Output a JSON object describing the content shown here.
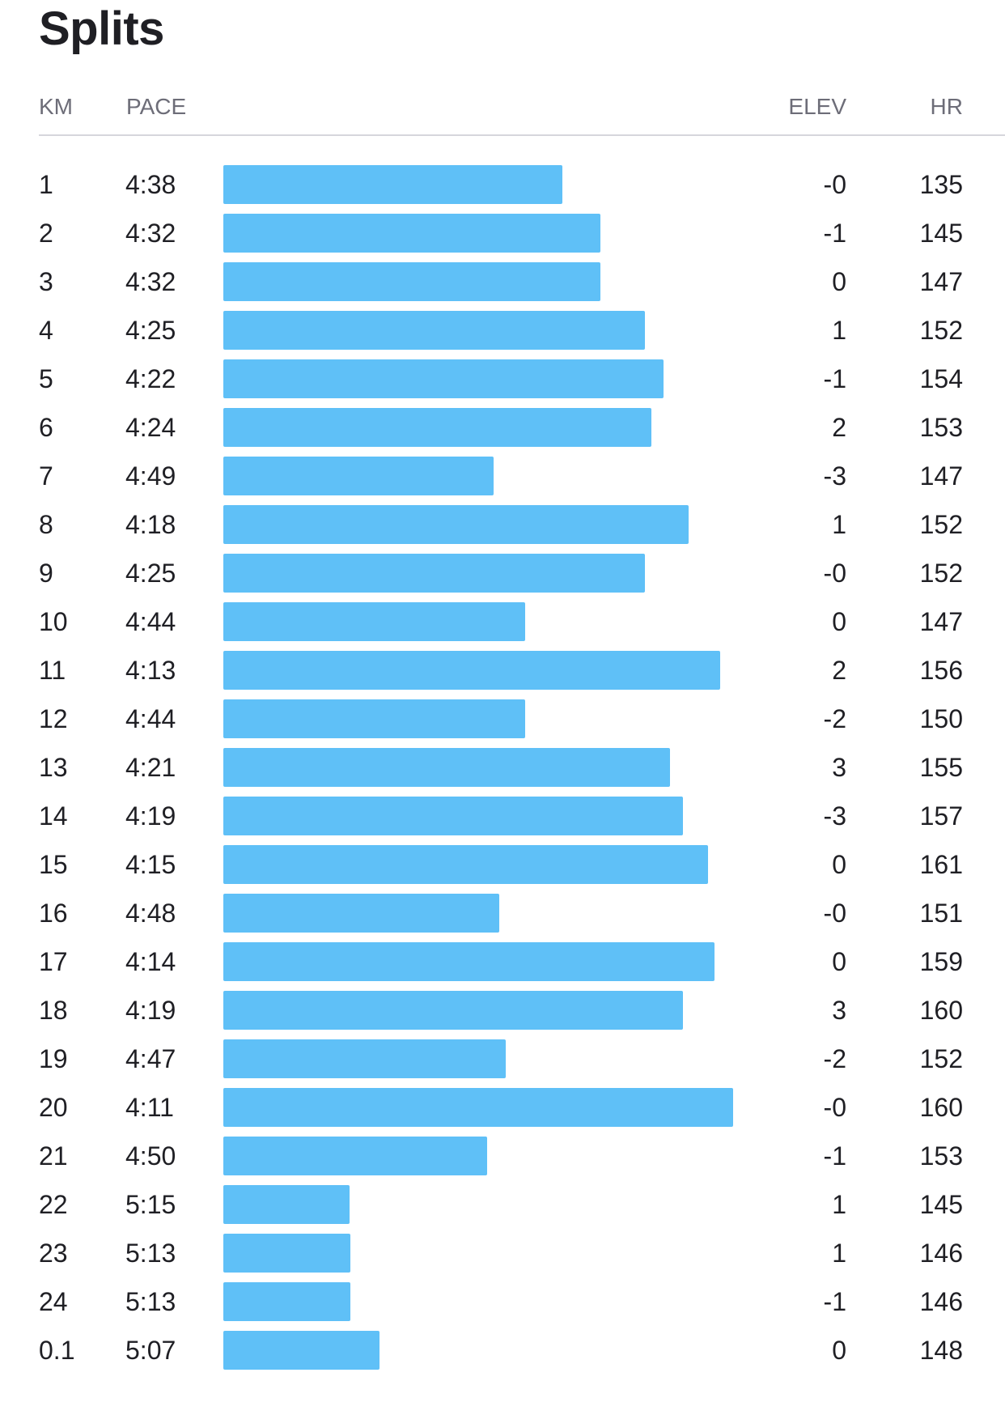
{
  "title": "Splits",
  "columns": {
    "km": "KM",
    "pace": "PACE",
    "elev": "ELEV",
    "hr": "HR"
  },
  "colors": {
    "bar": "#5fc0f7",
    "text": "#1f1f24",
    "header": "#6d6d78",
    "divider": "#d6d6dc"
  },
  "splits": [
    {
      "km": "1",
      "pace": "4:38",
      "elev": "-0",
      "hr": "135"
    },
    {
      "km": "2",
      "pace": "4:32",
      "elev": "-1",
      "hr": "145"
    },
    {
      "km": "3",
      "pace": "4:32",
      "elev": "0",
      "hr": "147"
    },
    {
      "km": "4",
      "pace": "4:25",
      "elev": "1",
      "hr": "152"
    },
    {
      "km": "5",
      "pace": "4:22",
      "elev": "-1",
      "hr": "154"
    },
    {
      "km": "6",
      "pace": "4:24",
      "elev": "2",
      "hr": "153"
    },
    {
      "km": "7",
      "pace": "4:49",
      "elev": "-3",
      "hr": "147"
    },
    {
      "km": "8",
      "pace": "4:18",
      "elev": "1",
      "hr": "152"
    },
    {
      "km": "9",
      "pace": "4:25",
      "elev": "-0",
      "hr": "152"
    },
    {
      "km": "10",
      "pace": "4:44",
      "elev": "0",
      "hr": "147"
    },
    {
      "km": "11",
      "pace": "4:13",
      "elev": "2",
      "hr": "156"
    },
    {
      "km": "12",
      "pace": "4:44",
      "elev": "-2",
      "hr": "150"
    },
    {
      "km": "13",
      "pace": "4:21",
      "elev": "3",
      "hr": "155"
    },
    {
      "km": "14",
      "pace": "4:19",
      "elev": "-3",
      "hr": "157"
    },
    {
      "km": "15",
      "pace": "4:15",
      "elev": "0",
      "hr": "161"
    },
    {
      "km": "16",
      "pace": "4:48",
      "elev": "-0",
      "hr": "151"
    },
    {
      "km": "17",
      "pace": "4:14",
      "elev": "0",
      "hr": "159"
    },
    {
      "km": "18",
      "pace": "4:19",
      "elev": "3",
      "hr": "160"
    },
    {
      "km": "19",
      "pace": "4:47",
      "elev": "-2",
      "hr": "152"
    },
    {
      "km": "20",
      "pace": "4:11",
      "elev": "-0",
      "hr": "160"
    },
    {
      "km": "21",
      "pace": "4:50",
      "elev": "-1",
      "hr": "153"
    },
    {
      "km": "22",
      "pace": "5:15",
      "elev": "1",
      "hr": "145"
    },
    {
      "km": "23",
      "pace": "5:13",
      "elev": "1",
      "hr": "146"
    },
    {
      "km": "24",
      "pace": "5:13",
      "elev": "-1",
      "hr": "146"
    },
    {
      "km": "0.1",
      "pace": "5:07",
      "elev": "0",
      "hr": "148"
    }
  ]
}
